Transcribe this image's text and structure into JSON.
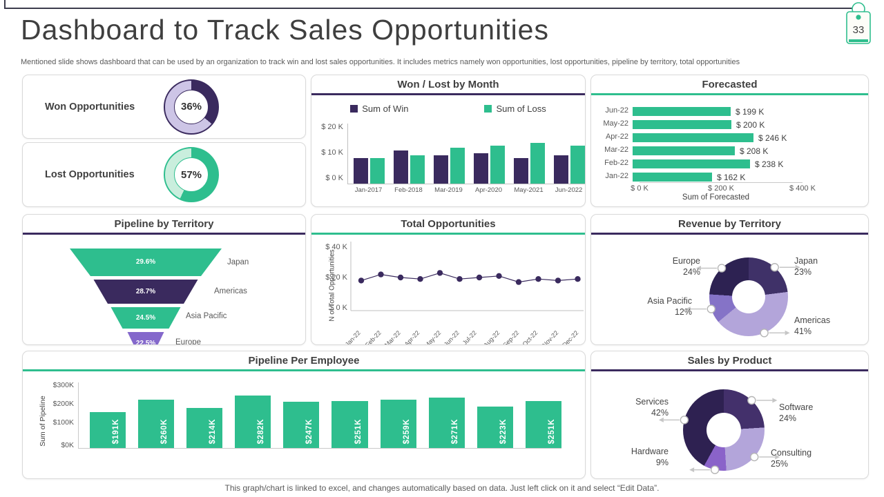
{
  "slide": {
    "title": "Dashboard to Track Sales Opportunities",
    "subtitle": "Mentioned slide shows dashboard that can be used by an organization to track win and lost sales opportunities. It includes metrics namely won opportunities, lost opportunities, pipeline by territory, total opportunities",
    "page_number": "33",
    "footer": "This graph/chart is linked to excel, and changes automatically based on data. Just left click on it and select “Edit Data”."
  },
  "colors": {
    "green": "#2ebe8e",
    "dark_purple": "#3a2a5e",
    "lavender": "#cdc5e6",
    "light_green": "#c9eedd",
    "mid_purple": "#8468cb"
  },
  "kpi": {
    "won": {
      "label": "Won Opportunities",
      "percent": "36%",
      "value": 36,
      "arc_color": "#3a2a5e",
      "rest_color": "#cdc5e6"
    },
    "lost": {
      "label": "Lost Opportunities",
      "percent": "57%",
      "value": 57,
      "arc_color": "#2ebe8e",
      "rest_color": "#c9eedd"
    }
  },
  "chart_data": [
    {
      "id": "won_lost",
      "type": "bar",
      "title": "Won / Lost by Month",
      "accent": "#3a2a5e",
      "categories": [
        "Jan-2017",
        "Feb-2018",
        "Mar-2019",
        "Apr-2020",
        "May-2021",
        "Jun-2022"
      ],
      "series": [
        {
          "name": "Sum of Win",
          "color": "#3a2a5e",
          "values": [
            10,
            13,
            11,
            12,
            10,
            11
          ]
        },
        {
          "name": "Sum of Loss",
          "color": "#2ebe8e",
          "values": [
            10,
            11,
            14,
            15,
            16,
            15
          ]
        }
      ],
      "yticks": [
        "$ 20 K",
        "$ 10 K",
        "$ 0 K"
      ],
      "ylim": [
        0,
        20
      ],
      "legend_position": "top"
    },
    {
      "id": "forecasted",
      "type": "bar",
      "title": "Forecasted",
      "accent": "#2ebe8e",
      "bar_color": "#2ebe8e",
      "orientation": "horizontal",
      "rows": [
        {
          "label": "Jun-22",
          "value": 199,
          "value_label": "$ 199 K"
        },
        {
          "label": "May-22",
          "value": 200,
          "value_label": "$ 200 K"
        },
        {
          "label": "Apr-22",
          "value": 246,
          "value_label": "$ 246 K"
        },
        {
          "label": "Mar-22",
          "value": 208,
          "value_label": "$ 208 K"
        },
        {
          "label": "Feb-22",
          "value": 238,
          "value_label": "$ 238 K"
        },
        {
          "label": "Jan-22",
          "value": 162,
          "value_label": "$ 162 K"
        }
      ],
      "xticks": [
        "$ 0 K",
        "$ 200 K",
        "$ 400 K"
      ],
      "xlim": [
        0,
        400
      ],
      "xlabel": "Sum of Forecasted"
    },
    {
      "id": "pipeline_territory",
      "type": "funnel",
      "title": "Pipeline by Territory",
      "accent": "#3a2a5e",
      "segments": [
        {
          "pct": "29.6%",
          "name": "Japan",
          "color": "#2ebe8e"
        },
        {
          "pct": "28.7%",
          "name": "Americas",
          "color": "#3a2a5e"
        },
        {
          "pct": "24.5%",
          "name": "Asia Pacific",
          "color": "#2ebe8e"
        },
        {
          "pct": "22.5%",
          "name": "Europe",
          "color": "#8468cb"
        }
      ]
    },
    {
      "id": "total_opportunities",
      "type": "line",
      "title": "Total Opportunities",
      "accent": "#2ebe8e",
      "line_color": "#3a2a5e",
      "ylabel": "N of Total Opportunities",
      "yticks": [
        "$ 40 K",
        "$ 20 K",
        "$ 0 K"
      ],
      "ylim": [
        0,
        40
      ],
      "categories": [
        "Jan-22",
        "Feb-22",
        "Mar-22",
        "Apr-22",
        "May-22",
        "Jun-22",
        "Jul-22",
        "Aug-22",
        "Sep-22",
        "Oct-22",
        "Nov-22",
        "Dec-22"
      ],
      "values": [
        18,
        22,
        20,
        19,
        23,
        19,
        20,
        21,
        17,
        19,
        18,
        19
      ]
    },
    {
      "id": "revenue_territory",
      "type": "pie",
      "title": "Revenue by Territory",
      "accent": "#3a2a5e",
      "slices": [
        {
          "name": "Japan",
          "pct": "23%",
          "value": 23,
          "color": "#3f3168"
        },
        {
          "name": "Americas",
          "pct": "41%",
          "value": 41,
          "color": "#b3a5da"
        },
        {
          "name": "Asia Pacific",
          "pct": "12%",
          "value": 12,
          "color": "#8573c7"
        },
        {
          "name": "Europe",
          "pct": "24%",
          "value": 24,
          "color": "#2d2252"
        }
      ]
    },
    {
      "id": "pipeline_employee",
      "type": "bar",
      "title": "Pipeline Per Employee",
      "accent": "#2ebe8e",
      "bar_color": "#2ebe8e",
      "ylabel": "Sum of Pipeline",
      "yticks": [
        "$300K",
        "$200K",
        "$100K",
        "$0K"
      ],
      "ylim": [
        0,
        300
      ],
      "bars": [
        {
          "label": "$191K",
          "value": 191
        },
        {
          "label": "$260K",
          "value": 260
        },
        {
          "label": "$214K",
          "value": 214
        },
        {
          "label": "$282K",
          "value": 282
        },
        {
          "label": "$247K",
          "value": 247
        },
        {
          "label": "$251K",
          "value": 251
        },
        {
          "label": "$259K",
          "value": 259
        },
        {
          "label": "$271K",
          "value": 271
        },
        {
          "label": "$223K",
          "value": 223
        },
        {
          "label": "$251K",
          "value": 251
        }
      ]
    },
    {
      "id": "sales_product",
      "type": "pie",
      "title": "Sales by Product",
      "accent": "#3a2a5e",
      "slices": [
        {
          "name": "Software",
          "pct": "24%",
          "value": 24,
          "color": "#43306b"
        },
        {
          "name": "Consulting",
          "pct": "25%",
          "value": 25,
          "color": "#b3a5da"
        },
        {
          "name": "Hardware",
          "pct": "9%",
          "value": 9,
          "color": "#8a63c9"
        },
        {
          "name": "Services",
          "pct": "42%",
          "value": 42,
          "color": "#2e2151"
        }
      ]
    }
  ]
}
